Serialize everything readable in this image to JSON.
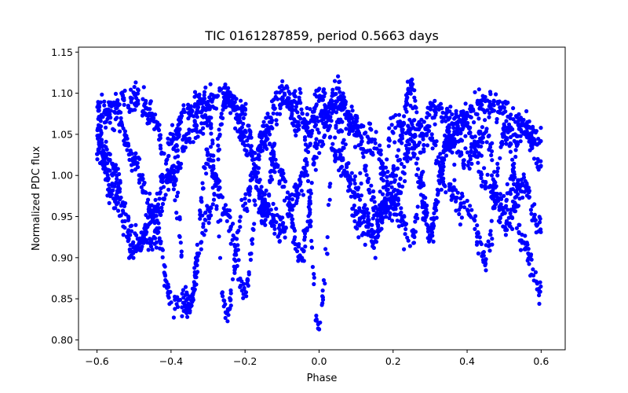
{
  "chart_data": {
    "type": "scatter",
    "title": "TIC 0161287859, period 0.5663 days",
    "xlabel": "Phase",
    "ylabel": "Normalized PDC flux",
    "xlim": [
      -0.65,
      0.665
    ],
    "ylim": [
      0.788,
      1.156
    ],
    "x_ticks": [
      -0.6,
      -0.4,
      -0.2,
      0.0,
      0.2,
      0.4,
      0.6
    ],
    "x_tick_labels": [
      "−0.6",
      "−0.4",
      "−0.2",
      "0.0",
      "0.2",
      "0.4",
      "0.6"
    ],
    "y_ticks": [
      0.8,
      0.85,
      0.9,
      0.95,
      1.0,
      1.05,
      1.1,
      1.15
    ],
    "y_tick_labels": [
      "0.80",
      "0.85",
      "0.90",
      "0.95",
      "1.00",
      "1.05",
      "1.10",
      "1.15"
    ],
    "grid": false,
    "legend": "none",
    "marker_color": "#0000ff",
    "series": [
      {
        "x_range": [
          -0.6,
          0.6
        ],
        "points": [
          [
            -0.6,
            1.06
          ],
          [
            -0.55,
            1.085
          ],
          [
            -0.5,
            1.095
          ],
          [
            -0.45,
            1.07
          ],
          [
            -0.4,
            1.0
          ],
          [
            -0.35,
            0.845
          ],
          [
            -0.3,
            0.95
          ],
          [
            -0.25,
            1.09
          ],
          [
            -0.2,
            1.07
          ],
          [
            -0.15,
            0.95
          ],
          [
            -0.1,
            1.09
          ],
          [
            -0.05,
            1.09
          ],
          [
            0.0,
            0.82
          ],
          [
            0.05,
            1.07
          ],
          [
            0.1,
            0.95
          ],
          [
            0.15,
            0.93
          ],
          [
            0.2,
            1.0
          ],
          [
            0.25,
            1.11
          ],
          [
            0.3,
            0.93
          ],
          [
            0.35,
            1.05
          ],
          [
            0.4,
            1.07
          ],
          [
            0.45,
            1.09
          ],
          [
            0.5,
            1.08
          ],
          [
            0.55,
            0.92
          ],
          [
            0.6,
            0.86
          ]
        ]
      },
      {
        "x_range": [
          -0.6,
          0.6
        ],
        "points": [
          [
            -0.6,
            1.05
          ],
          [
            -0.55,
            1.0
          ],
          [
            -0.5,
            0.92
          ],
          [
            -0.45,
            0.92
          ],
          [
            -0.4,
            1.0
          ],
          [
            -0.35,
            1.05
          ],
          [
            -0.3,
            1.07
          ],
          [
            -0.25,
            0.83
          ],
          [
            -0.2,
            0.97
          ],
          [
            -0.15,
            1.05
          ],
          [
            -0.1,
            1.1
          ],
          [
            -0.05,
            1.06
          ],
          [
            0.0,
            1.07
          ],
          [
            0.05,
            1.09
          ],
          [
            0.1,
            1.06
          ],
          [
            0.15,
            0.96
          ],
          [
            0.2,
            0.96
          ],
          [
            0.25,
            1.04
          ],
          [
            0.3,
            0.93
          ],
          [
            0.35,
            1.04
          ],
          [
            0.4,
            1.02
          ],
          [
            0.45,
            1.05
          ],
          [
            0.5,
            0.93
          ],
          [
            0.55,
            0.99
          ],
          [
            0.6,
            0.93
          ]
        ]
      },
      {
        "x_range": [
          -0.6,
          0.6
        ],
        "points": [
          [
            -0.6,
            1.09
          ],
          [
            -0.55,
            1.07
          ],
          [
            -0.5,
            1.02
          ],
          [
            -0.45,
            0.96
          ],
          [
            -0.4,
            0.85
          ],
          [
            -0.35,
            0.84
          ],
          [
            -0.3,
            1.02
          ],
          [
            -0.25,
            0.95
          ],
          [
            -0.2,
            0.86
          ],
          [
            -0.15,
            1.05
          ],
          [
            -0.1,
            1.0
          ],
          [
            -0.05,
            0.9
          ],
          [
            0.0,
            1.04
          ],
          [
            0.05,
            1.1
          ],
          [
            0.1,
            1.05
          ],
          [
            0.15,
            1.04
          ],
          [
            0.2,
            0.97
          ],
          [
            0.25,
            0.92
          ],
          [
            0.3,
            1.08
          ],
          [
            0.35,
            1.08
          ],
          [
            0.4,
            1.06
          ],
          [
            0.45,
            0.99
          ],
          [
            0.5,
            0.96
          ],
          [
            0.55,
            1.06
          ],
          [
            0.6,
            1.04
          ]
        ]
      },
      {
        "x_range": [
          -0.6,
          0.6
        ],
        "points": [
          [
            -0.6,
            1.03
          ],
          [
            -0.55,
            0.97
          ],
          [
            -0.5,
            0.9
          ],
          [
            -0.45,
            0.95
          ],
          [
            -0.4,
            1.04
          ],
          [
            -0.35,
            1.08
          ],
          [
            -0.3,
            1.09
          ],
          [
            -0.25,
            1.1
          ],
          [
            -0.2,
            1.04
          ],
          [
            -0.15,
            0.97
          ],
          [
            -0.1,
            0.93
          ],
          [
            -0.05,
            0.99
          ],
          [
            0.0,
            1.1
          ],
          [
            0.05,
            1.02
          ],
          [
            0.1,
            0.98
          ],
          [
            0.15,
            0.92
          ],
          [
            0.2,
            1.06
          ],
          [
            0.25,
            1.06
          ],
          [
            0.3,
            1.05
          ],
          [
            0.35,
            0.98
          ],
          [
            0.4,
            0.96
          ],
          [
            0.45,
            0.9
          ],
          [
            0.5,
            1.05
          ],
          [
            0.55,
            1.07
          ],
          [
            0.6,
            1.01
          ]
        ]
      }
    ]
  }
}
